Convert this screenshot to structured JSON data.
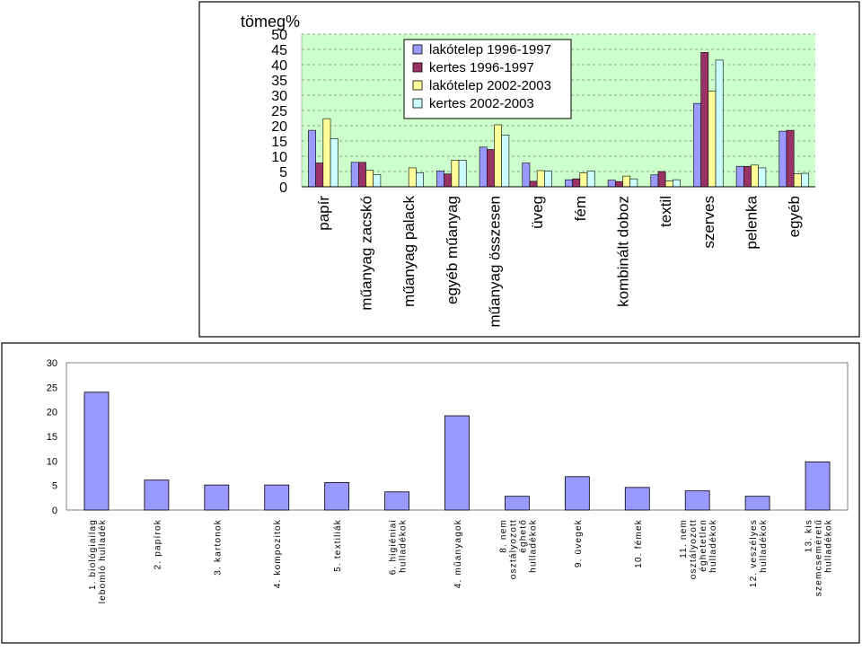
{
  "chart_data": [
    {
      "type": "bar",
      "ylabel": "tömeg%",
      "ylim": [
        0,
        50
      ],
      "yticks": [
        0,
        5,
        10,
        15,
        20,
        25,
        30,
        35,
        40,
        45,
        50
      ],
      "grid": "horizontal dashed",
      "legend_position": "top-center",
      "background_color": "#ccffcc",
      "categories": [
        "papír",
        "műanyag zacskó",
        "műanyag palack",
        "egyéb műanyag",
        "műanyag összesen",
        "üveg",
        "fém",
        "kombinált doboz",
        "textil",
        "szerves",
        "pelenka",
        "egyéb"
      ],
      "series": [
        {
          "name": "lakótelep 1996-1997",
          "color": "#9999ff",
          "values": [
            18.5,
            8,
            0,
            5.2,
            13,
            7.8,
            2.3,
            2.2,
            3.9,
            27.3,
            6.7,
            18.2
          ]
        },
        {
          "name": "kertes 1996-1997",
          "color": "#993366",
          "values": [
            7.8,
            8,
            0,
            4.2,
            12.2,
            1.8,
            2.6,
            1.7,
            5,
            44,
            6.7,
            18.5
          ]
        },
        {
          "name": "lakótelep 2002-2003",
          "color": "#ffff99",
          "values": [
            22.3,
            5.4,
            6.2,
            8.7,
            20.3,
            5.3,
            4.6,
            3.5,
            1.9,
            31.4,
            7.1,
            4.2
          ]
        },
        {
          "name": "kertes 2002-2003",
          "color": "#ccffff",
          "values": [
            15.8,
            4,
            4.6,
            8.7,
            16.9,
            5.1,
            5.2,
            2.6,
            2.3,
            41.5,
            6.2,
            4.4
          ]
        }
      ]
    },
    {
      "type": "bar",
      "ylim": [
        0,
        30
      ],
      "yticks": [
        0,
        5,
        10,
        15,
        20,
        25,
        30
      ],
      "grid": "none",
      "bar_color": "#9999ff",
      "categories": [
        [
          "1. biológiailag",
          "lebomló hulladék"
        ],
        [
          "2. papírok"
        ],
        [
          "3. kartonok"
        ],
        [
          "4. kompozitok"
        ],
        [
          "5. textiliák"
        ],
        [
          "6. higiéniai",
          "hulladékok"
        ],
        [
          "4. műanyagok"
        ],
        [
          "8. nem",
          "osztályozott",
          "éghető",
          "hulladékok"
        ],
        [
          "9. üvegek"
        ],
        [
          "10. fémek"
        ],
        [
          "11. nem",
          "osztályozott",
          "éghetetlen",
          "hulladékok"
        ],
        [
          "12. veszélyes",
          "hulladékok"
        ],
        [
          "13. kis",
          "szemcseméretű",
          "hulladékok"
        ]
      ],
      "values": [
        24,
        6.1,
        5.1,
        5.1,
        5.6,
        3.7,
        19.2,
        2.8,
        6.8,
        4.6,
        3.9,
        2.8,
        9.8
      ]
    }
  ]
}
